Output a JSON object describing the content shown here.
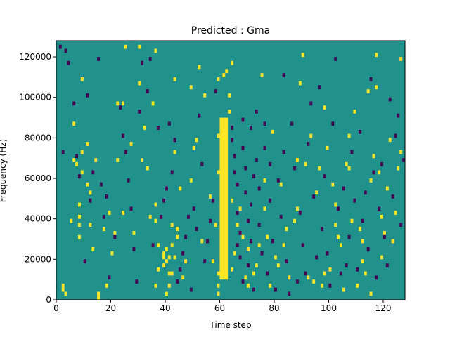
{
  "chart_data": {
    "type": "heatmap",
    "title": "Predicted : Gma",
    "xlabel": "Time step",
    "ylabel": "Frequency (Hz)",
    "xlim": [
      0,
      128
    ],
    "ylim": [
      0,
      128000
    ],
    "x_ticks": [
      0,
      20,
      40,
      60,
      80,
      100,
      120
    ],
    "y_ticks": [
      0,
      20000,
      40000,
      60000,
      80000,
      100000,
      120000
    ],
    "x_tick_labels": [
      "0",
      "20",
      "40",
      "60",
      "80",
      "100",
      "120"
    ],
    "y_tick_labels": [
      "0",
      "20000",
      "40000",
      "60000",
      "80000",
      "100000",
      "120000"
    ],
    "colors": {
      "low": "#440154",
      "mid": "#21918c",
      "high": "#fde725"
    },
    "background_level": "mid",
    "bright_band": {
      "x_start": 60,
      "x_end": 63,
      "y_start": 10000,
      "y_end": 90000,
      "level": "high"
    },
    "cells": {
      "high": [
        [
          2,
          4000
        ],
        [
          2,
          6000
        ],
        [
          3,
          2000
        ],
        [
          5,
          38000
        ],
        [
          6,
          68000
        ],
        [
          6,
          86000
        ],
        [
          7,
          66000
        ],
        [
          8,
          30000
        ],
        [
          8,
          36000
        ],
        [
          8,
          40000
        ],
        [
          8,
          46000
        ],
        [
          9,
          62000
        ],
        [
          9,
          72000
        ],
        [
          9,
          108000
        ],
        [
          11,
          56000
        ],
        [
          11,
          76000
        ],
        [
          12,
          36000
        ],
        [
          12,
          52000
        ],
        [
          13,
          24000
        ],
        [
          14,
          68000
        ],
        [
          15,
          0
        ],
        [
          15,
          2000
        ],
        [
          17,
          34000
        ],
        [
          18,
          6000
        ],
        [
          19,
          42000
        ],
        [
          20,
          22000
        ],
        [
          21,
          32000
        ],
        [
          22,
          68000
        ],
        [
          22,
          96000
        ],
        [
          24,
          42000
        ],
        [
          24,
          96000
        ],
        [
          25,
          124000
        ],
        [
          27,
          76000
        ],
        [
          28,
          32000
        ],
        [
          30,
          106000
        ],
        [
          30,
          124000
        ],
        [
          31,
          68000
        ],
        [
          32,
          84000
        ],
        [
          33,
          64000
        ],
        [
          34,
          40000
        ],
        [
          35,
          96000
        ],
        [
          36,
          6000
        ],
        [
          36,
          38000
        ],
        [
          36,
          46000
        ],
        [
          36,
          122000
        ],
        [
          37,
          14000
        ],
        [
          37,
          26000
        ],
        [
          39,
          16000
        ],
        [
          39,
          20000
        ],
        [
          39,
          22000
        ],
        [
          40,
          2000
        ],
        [
          40,
          18000
        ],
        [
          40,
          24000
        ],
        [
          41,
          6000
        ],
        [
          41,
          12000
        ],
        [
          41,
          20000
        ],
        [
          42,
          12000
        ],
        [
          42,
          26000
        ],
        [
          42,
          36000
        ],
        [
          43,
          20000
        ],
        [
          43,
          72000
        ],
        [
          43,
          108000
        ],
        [
          44,
          30000
        ],
        [
          44,
          34000
        ],
        [
          45,
          54000
        ],
        [
          46,
          10000
        ],
        [
          47,
          18000
        ],
        [
          49,
          58000
        ],
        [
          49,
          104000
        ],
        [
          50,
          74000
        ],
        [
          51,
          78000
        ],
        [
          52,
          114000
        ],
        [
          53,
          28000
        ],
        [
          54,
          100000
        ],
        [
          56,
          50000
        ],
        [
          57,
          18000
        ],
        [
          58,
          36000
        ],
        [
          59,
          2000
        ],
        [
          59,
          6000
        ],
        [
          59,
          12000
        ],
        [
          59,
          62000
        ],
        [
          59,
          80000
        ],
        [
          59,
          108000
        ],
        [
          61,
          110000
        ],
        [
          62,
          112000
        ],
        [
          63,
          92000
        ],
        [
          63,
          100000
        ],
        [
          64,
          14000
        ],
        [
          64,
          48000
        ],
        [
          64,
          116000
        ],
        [
          65,
          22000
        ],
        [
          66,
          36000
        ],
        [
          67,
          44000
        ],
        [
          68,
          30000
        ],
        [
          69,
          10000
        ],
        [
          70,
          6000
        ],
        [
          70,
          24000
        ],
        [
          72,
          12000
        ],
        [
          73,
          16000
        ],
        [
          74,
          26000
        ],
        [
          75,
          110000
        ],
        [
          76,
          44000
        ],
        [
          76,
          58000
        ],
        [
          77,
          30000
        ],
        [
          78,
          6000
        ],
        [
          79,
          82000
        ],
        [
          80,
          20000
        ],
        [
          81,
          16000
        ],
        [
          82,
          56000
        ],
        [
          83,
          26000
        ],
        [
          84,
          34000
        ],
        [
          85,
          10000
        ],
        [
          87,
          38000
        ],
        [
          88,
          44000
        ],
        [
          88,
          68000
        ],
        [
          89,
          106000
        ],
        [
          90,
          120000
        ],
        [
          91,
          66000
        ],
        [
          92,
          10000
        ],
        [
          93,
          80000
        ],
        [
          94,
          8000
        ],
        [
          95,
          52000
        ],
        [
          96,
          64000
        ],
        [
          97,
          6000
        ],
        [
          98,
          12000
        ],
        [
          98,
          94000
        ],
        [
          99,
          74000
        ],
        [
          100,
          14000
        ],
        [
          101,
          56000
        ],
        [
          102,
          36000
        ],
        [
          102,
          46000
        ],
        [
          103,
          30000
        ],
        [
          104,
          26000
        ],
        [
          105,
          4000
        ],
        [
          106,
          66000
        ],
        [
          107,
          64000
        ],
        [
          107,
          80000
        ],
        [
          108,
          38000
        ],
        [
          109,
          92000
        ],
        [
          110,
          6000
        ],
        [
          111,
          34000
        ],
        [
          112,
          18000
        ],
        [
          112,
          28000
        ],
        [
          113,
          12000
        ],
        [
          114,
          102000
        ],
        [
          115,
          2000
        ],
        [
          115,
          58000
        ],
        [
          116,
          70000
        ],
        [
          117,
          104000
        ],
        [
          117,
          120000
        ],
        [
          118,
          62000
        ],
        [
          119,
          20000
        ],
        [
          119,
          40000
        ],
        [
          120,
          32000
        ],
        [
          121,
          54000
        ],
        [
          122,
          78000
        ],
        [
          123,
          28000
        ],
        [
          124,
          42000
        ],
        [
          125,
          64000
        ],
        [
          126,
          72000
        ],
        [
          126,
          118000
        ]
      ],
      "low": [
        [
          1,
          124000
        ],
        [
          2,
          72000
        ],
        [
          3,
          122000
        ],
        [
          4,
          116000
        ],
        [
          6,
          96000
        ],
        [
          7,
          70000
        ],
        [
          8,
          60000
        ],
        [
          10,
          18000
        ],
        [
          11,
          100000
        ],
        [
          12,
          48000
        ],
        [
          13,
          62000
        ],
        [
          15,
          118000
        ],
        [
          16,
          56000
        ],
        [
          17,
          40000
        ],
        [
          18,
          50000
        ],
        [
          19,
          10000
        ],
        [
          21,
          30000
        ],
        [
          23,
          94000
        ],
        [
          24,
          80000
        ],
        [
          25,
          72000
        ],
        [
          26,
          58000
        ],
        [
          27,
          44000
        ],
        [
          28,
          24000
        ],
        [
          29,
          8000
        ],
        [
          30,
          92000
        ],
        [
          31,
          116000
        ],
        [
          33,
          102000
        ],
        [
          34,
          118000
        ],
        [
          35,
          26000
        ],
        [
          37,
          84000
        ],
        [
          38,
          40000
        ],
        [
          39,
          48000
        ],
        [
          40,
          54000
        ],
        [
          41,
          86000
        ],
        [
          42,
          62000
        ],
        [
          43,
          78000
        ],
        [
          44,
          8000
        ],
        [
          45,
          14000
        ],
        [
          46,
          22000
        ],
        [
          47,
          30000
        ],
        [
          48,
          40000
        ],
        [
          49,
          4000
        ],
        [
          50,
          44000
        ],
        [
          51,
          34000
        ],
        [
          52,
          90000
        ],
        [
          53,
          66000
        ],
        [
          54,
          18000
        ],
        [
          55,
          28000
        ],
        [
          56,
          38000
        ],
        [
          57,
          48000
        ],
        [
          58,
          102000
        ],
        [
          64,
          84000
        ],
        [
          64,
          78000
        ],
        [
          65,
          70000
        ],
        [
          65,
          62000
        ],
        [
          66,
          56000
        ],
        [
          66,
          42000
        ],
        [
          66,
          26000
        ],
        [
          67,
          32000
        ],
        [
          67,
          20000
        ],
        [
          68,
          88000
        ],
        [
          68,
          74000
        ],
        [
          68,
          8000
        ],
        [
          69,
          64000
        ],
        [
          69,
          52000
        ],
        [
          70,
          38000
        ],
        [
          70,
          16000
        ],
        [
          71,
          84000
        ],
        [
          71,
          46000
        ],
        [
          71,
          28000
        ],
        [
          72,
          60000
        ],
        [
          72,
          4000
        ],
        [
          73,
          68000
        ],
        [
          73,
          92000
        ],
        [
          74,
          54000
        ],
        [
          74,
          36000
        ],
        [
          75,
          22000
        ],
        [
          76,
          74000
        ],
        [
          76,
          86000
        ],
        [
          77,
          12000
        ],
        [
          78,
          48000
        ],
        [
          78,
          66000
        ],
        [
          79,
          28000
        ],
        [
          80,
          4000
        ],
        [
          81,
          58000
        ],
        [
          82,
          40000
        ],
        [
          83,
          72000
        ],
        [
          83,
          110000
        ],
        [
          84,
          18000
        ],
        [
          85,
          2000
        ],
        [
          86,
          86000
        ],
        [
          87,
          64000
        ],
        [
          88,
          8000
        ],
        [
          89,
          42000
        ],
        [
          90,
          26000
        ],
        [
          91,
          12000
        ],
        [
          92,
          76000
        ],
        [
          93,
          96000
        ],
        [
          94,
          50000
        ],
        [
          95,
          20000
        ],
        [
          96,
          104000
        ],
        [
          97,
          34000
        ],
        [
          98,
          60000
        ],
        [
          99,
          22000
        ],
        [
          100,
          6000
        ],
        [
          101,
          86000
        ],
        [
          102,
          118000
        ],
        [
          103,
          44000
        ],
        [
          104,
          12000
        ],
        [
          105,
          54000
        ],
        [
          106,
          16000
        ],
        [
          107,
          30000
        ],
        [
          108,
          72000
        ],
        [
          109,
          48000
        ],
        [
          110,
          14000
        ],
        [
          111,
          82000
        ],
        [
          112,
          38000
        ],
        [
          113,
          52000
        ],
        [
          114,
          24000
        ],
        [
          115,
          108000
        ],
        [
          116,
          62000
        ],
        [
          117,
          10000
        ],
        [
          118,
          44000
        ],
        [
          119,
          66000
        ],
        [
          120,
          30000
        ],
        [
          121,
          16000
        ],
        [
          122,
          98000
        ],
        [
          123,
          50000
        ],
        [
          124,
          80000
        ],
        [
          125,
          90000
        ],
        [
          126,
          36000
        ],
        [
          127,
          68000
        ]
      ]
    }
  }
}
